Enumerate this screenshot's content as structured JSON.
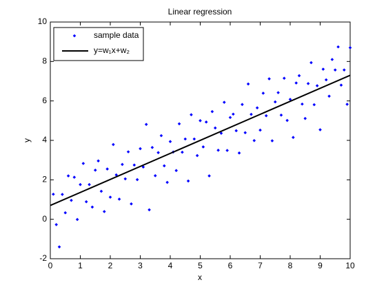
{
  "chart_data": {
    "type": "scatter",
    "title": "Linear regression",
    "x_label": "x",
    "y_label": "y",
    "xlim": [
      0,
      10
    ],
    "ylim": [
      -2,
      10
    ],
    "xticks": [
      0,
      1,
      2,
      3,
      4,
      5,
      6,
      7,
      8,
      9,
      10
    ],
    "yticks": [
      -2,
      0,
      2,
      4,
      6,
      8,
      10
    ],
    "grid": false,
    "legend": "upper-left",
    "series": [
      {
        "name": "sample data",
        "color": "#0000ff",
        "style": "markers",
        "x": [
          0.1,
          0.2,
          0.3,
          0.4,
          0.5,
          0.6,
          0.7,
          0.8,
          0.9,
          1.0,
          1.1,
          1.2,
          1.3,
          1.4,
          1.5,
          1.6,
          1.7,
          1.8,
          1.9,
          2.0,
          2.1,
          2.2,
          2.3,
          2.4,
          2.5,
          2.6,
          2.7,
          2.8,
          2.9,
          3.0,
          3.1,
          3.2,
          3.3,
          3.4,
          3.5,
          3.6,
          3.7,
          3.8,
          3.9,
          4.0,
          4.1,
          4.2,
          4.3,
          4.4,
          4.5,
          4.6,
          4.7,
          4.8,
          4.9,
          5.0,
          5.1,
          5.2,
          5.3,
          5.4,
          5.5,
          5.6,
          5.7,
          5.8,
          5.9,
          6.0,
          6.1,
          6.2,
          6.3,
          6.4,
          6.5,
          6.6,
          6.7,
          6.8,
          6.9,
          7.0,
          7.1,
          7.2,
          7.3,
          7.4,
          7.5,
          7.6,
          7.7,
          7.8,
          7.9,
          8.0,
          8.1,
          8.2,
          8.3,
          8.4,
          8.5,
          8.6,
          8.7,
          8.8,
          8.9,
          9.0,
          9.1,
          9.2,
          9.3,
          9.4,
          9.5,
          9.6,
          9.7,
          9.8,
          9.9,
          10.0
        ],
        "values": [
          1.27,
          -0.27,
          -1.4,
          1.26,
          0.33,
          2.2,
          0.96,
          2.13,
          -0.01,
          1.76,
          2.83,
          0.89,
          1.76,
          0.62,
          2.49,
          2.96,
          1.42,
          0.39,
          2.55,
          1.12,
          3.79,
          2.25,
          1.02,
          2.78,
          2.05,
          3.42,
          0.78,
          2.75,
          2.01,
          3.58,
          2.65,
          4.81,
          0.48,
          3.64,
          2.21,
          3.38,
          4.24,
          2.71,
          1.87,
          3.94,
          3.41,
          2.47,
          4.84,
          3.4,
          4.07,
          1.94,
          5.3,
          4.07,
          3.23,
          5.0,
          3.67,
          4.93,
          2.2,
          5.46,
          4.63,
          3.5,
          4.36,
          5.93,
          3.49,
          5.16,
          5.33,
          4.49,
          3.36,
          5.82,
          4.39,
          6.86,
          5.32,
          3.99,
          5.65,
          4.52,
          6.39,
          5.25,
          7.12,
          3.98,
          5.95,
          6.42,
          5.28,
          7.15,
          5.01,
          6.08,
          4.15,
          6.91,
          7.28,
          5.84,
          5.11,
          6.88,
          7.94,
          5.81,
          6.77,
          4.54,
          7.61,
          7.07,
          6.24,
          8.1,
          7.57,
          8.74,
          6.8,
          7.57,
          5.83,
          8.7
        ]
      },
      {
        "name": "y=w₁x+w₂",
        "color": "#000000",
        "style": "line",
        "x": [
          0,
          10
        ],
        "values": [
          0.7,
          7.3
        ]
      }
    ]
  }
}
